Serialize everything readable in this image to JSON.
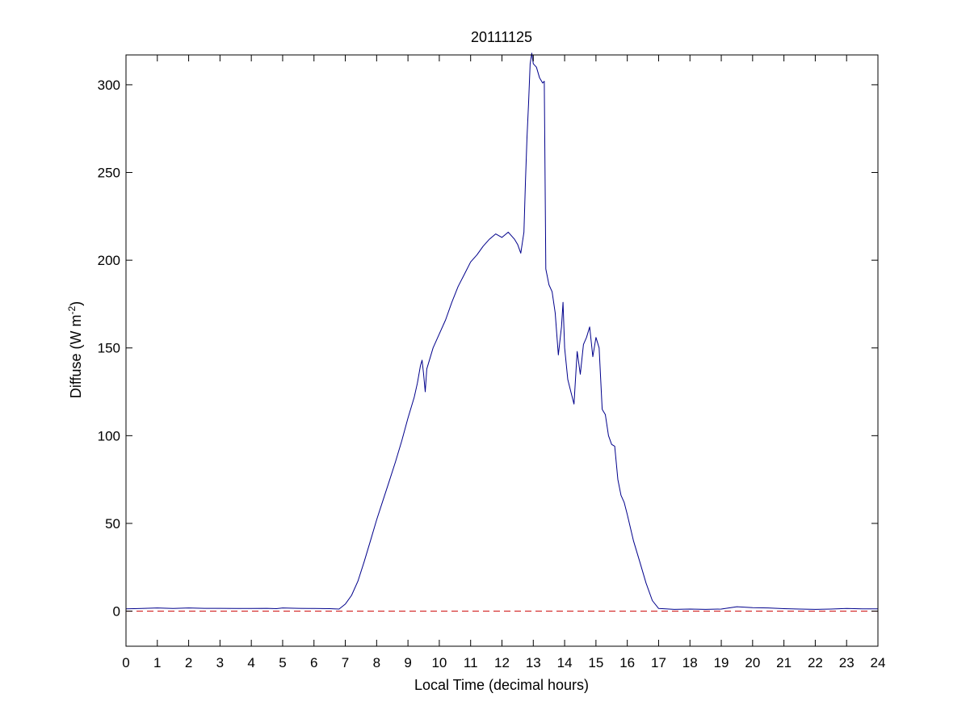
{
  "chart_data": {
    "type": "line",
    "title": "20111125",
    "xlabel": "Local Time (decimal hours)",
    "ylabel": {
      "prefix": "Diffuse (W m",
      "superscript": "-2",
      "suffix": ")"
    },
    "xlim": [
      0,
      24
    ],
    "ylim": [
      -20,
      317
    ],
    "xticks": [
      0,
      1,
      2,
      3,
      4,
      5,
      6,
      7,
      8,
      9,
      10,
      11,
      12,
      13,
      14,
      15,
      16,
      17,
      18,
      19,
      20,
      21,
      22,
      23,
      24
    ],
    "yticks": [
      0,
      50,
      100,
      150,
      200,
      250,
      300
    ],
    "grid": false,
    "box": true,
    "series": [
      {
        "color": "#00008b",
        "style": "solid",
        "points": [
          [
            0.0,
            1.3
          ],
          [
            0.5,
            1.5
          ],
          [
            1.0,
            1.8
          ],
          [
            1.5,
            1.5
          ],
          [
            2.0,
            1.8
          ],
          [
            2.5,
            1.6
          ],
          [
            3.0,
            1.6
          ],
          [
            3.5,
            1.5
          ],
          [
            4.0,
            1.5
          ],
          [
            4.5,
            1.6
          ],
          [
            4.8,
            1.4
          ],
          [
            5.0,
            1.8
          ],
          [
            5.5,
            1.6
          ],
          [
            6.0,
            1.5
          ],
          [
            6.5,
            1.4
          ],
          [
            6.8,
            1.2
          ],
          [
            7.0,
            4.0
          ],
          [
            7.2,
            9.0
          ],
          [
            7.4,
            17.0
          ],
          [
            7.6,
            28.0
          ],
          [
            7.8,
            40.0
          ],
          [
            8.0,
            52.0
          ],
          [
            8.2,
            63.0
          ],
          [
            8.4,
            74.0
          ],
          [
            8.6,
            85.0
          ],
          [
            8.8,
            97.0
          ],
          [
            9.0,
            110.0
          ],
          [
            9.2,
            122.0
          ],
          [
            9.3,
            130.0
          ],
          [
            9.4,
            140.0
          ],
          [
            9.45,
            143.0
          ],
          [
            9.5,
            135.0
          ],
          [
            9.55,
            125.0
          ],
          [
            9.6,
            138.0
          ],
          [
            9.8,
            150.0
          ],
          [
            10.0,
            158.0
          ],
          [
            10.2,
            166.0
          ],
          [
            10.4,
            176.0
          ],
          [
            10.6,
            185.0
          ],
          [
            10.8,
            192.0
          ],
          [
            11.0,
            199.0
          ],
          [
            11.2,
            203.0
          ],
          [
            11.4,
            208.0
          ],
          [
            11.6,
            212.0
          ],
          [
            11.8,
            215.0
          ],
          [
            12.0,
            213.0
          ],
          [
            12.2,
            216.0
          ],
          [
            12.4,
            212.0
          ],
          [
            12.5,
            209.0
          ],
          [
            12.6,
            204.0
          ],
          [
            12.7,
            216.0
          ],
          [
            12.75,
            245.0
          ],
          [
            12.8,
            270.0
          ],
          [
            12.85,
            290.0
          ],
          [
            12.9,
            312.0
          ],
          [
            12.95,
            318.0
          ],
          [
            13.0,
            312.0
          ],
          [
            13.1,
            310.0
          ],
          [
            13.2,
            304.0
          ],
          [
            13.3,
            301.0
          ],
          [
            13.35,
            302.0
          ],
          [
            13.4,
            195.0
          ],
          [
            13.5,
            186.0
          ],
          [
            13.6,
            182.0
          ],
          [
            13.7,
            170.0
          ],
          [
            13.8,
            146.0
          ],
          [
            13.9,
            162.0
          ],
          [
            13.95,
            176.0
          ],
          [
            14.0,
            150.0
          ],
          [
            14.1,
            132.0
          ],
          [
            14.2,
            125.0
          ],
          [
            14.3,
            118.0
          ],
          [
            14.4,
            148.0
          ],
          [
            14.5,
            135.0
          ],
          [
            14.6,
            152.0
          ],
          [
            14.7,
            156.0
          ],
          [
            14.8,
            162.0
          ],
          [
            14.9,
            145.0
          ],
          [
            15.0,
            156.0
          ],
          [
            15.1,
            150.0
          ],
          [
            15.2,
            115.0
          ],
          [
            15.3,
            112.0
          ],
          [
            15.4,
            100.0
          ],
          [
            15.5,
            95.0
          ],
          [
            15.6,
            94.0
          ],
          [
            15.7,
            75.0
          ],
          [
            15.8,
            66.0
          ],
          [
            15.9,
            62.0
          ],
          [
            16.0,
            55.0
          ],
          [
            16.2,
            40.0
          ],
          [
            16.4,
            28.0
          ],
          [
            16.6,
            16.0
          ],
          [
            16.8,
            6.0
          ],
          [
            17.0,
            1.5
          ],
          [
            17.5,
            1.0
          ],
          [
            18.0,
            1.2
          ],
          [
            18.5,
            1.0
          ],
          [
            19.0,
            1.2
          ],
          [
            19.5,
            2.5
          ],
          [
            20.0,
            2.0
          ],
          [
            20.5,
            1.8
          ],
          [
            21.0,
            1.4
          ],
          [
            21.5,
            1.2
          ],
          [
            22.0,
            1.0
          ],
          [
            22.5,
            1.2
          ],
          [
            23.0,
            1.5
          ],
          [
            23.5,
            1.3
          ],
          [
            24.0,
            1.3
          ]
        ]
      },
      {
        "color": "#cc0000",
        "style": "dashed",
        "points": [
          [
            0,
            0
          ],
          [
            24,
            0
          ]
        ]
      }
    ]
  }
}
